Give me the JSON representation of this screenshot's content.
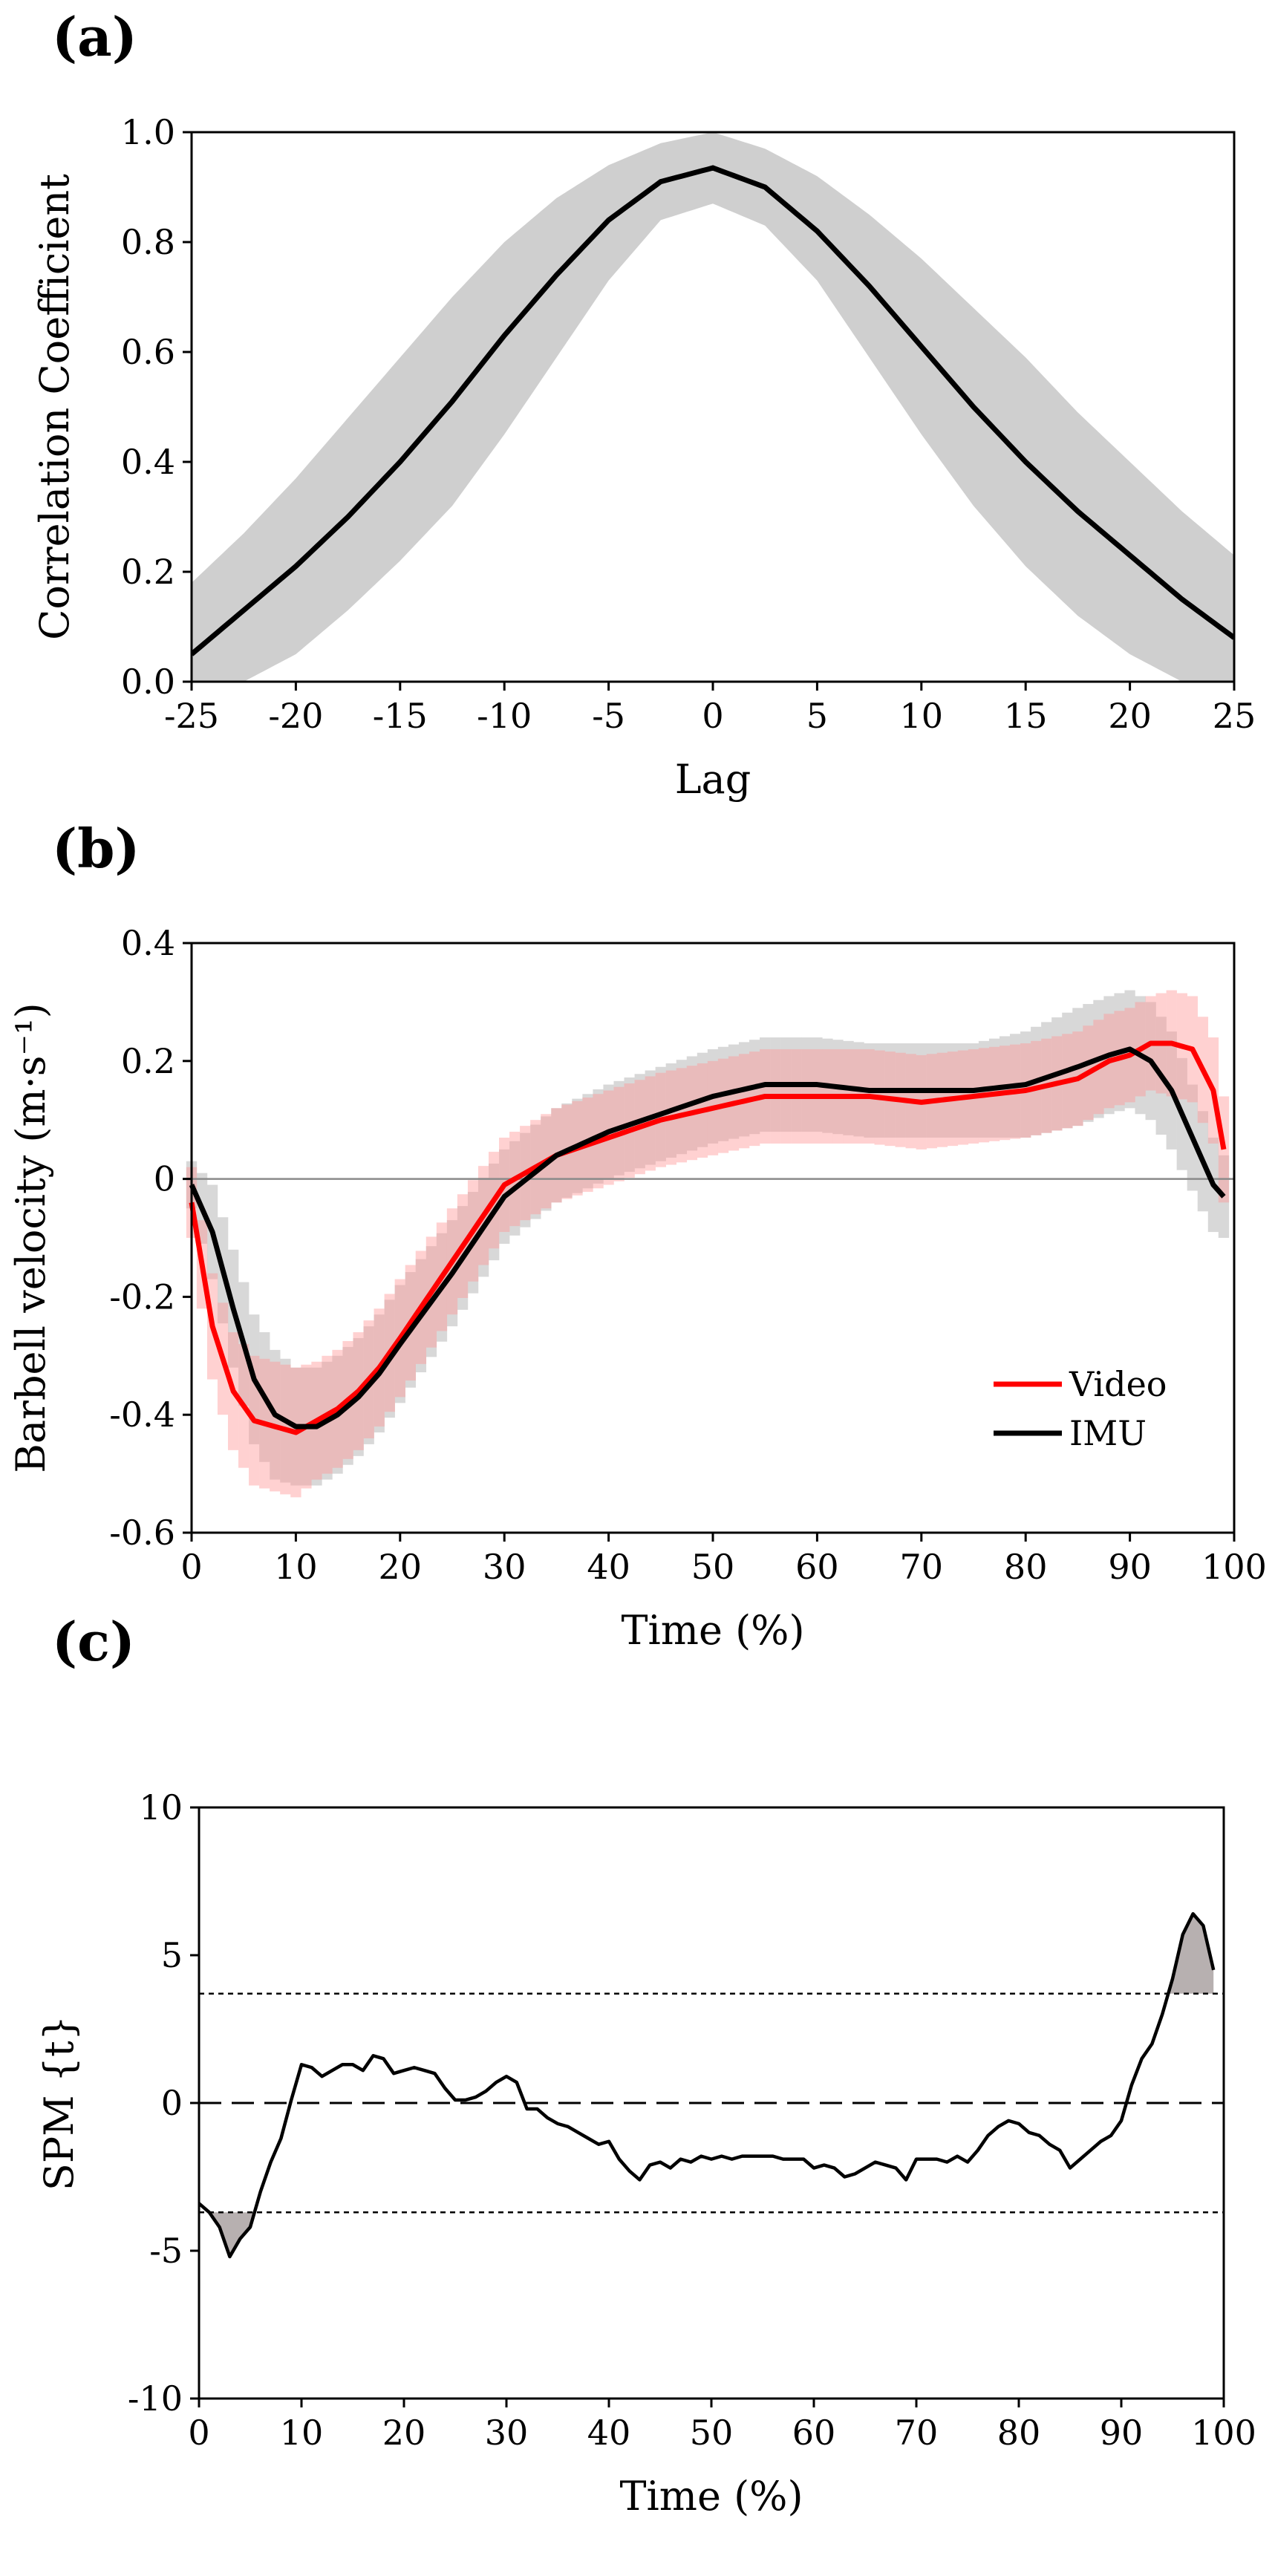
{
  "colors": {
    "band_gray": "#cfcfcf",
    "line_black": "#000000",
    "video_red": "#ff0000",
    "video_band": "#ff9a9a",
    "imu_band": "#a9a9a9",
    "zero_line": "#8a8a8a",
    "spm_fill": "#b7b0b0"
  },
  "chart_data": [
    {
      "id": "a",
      "type": "line",
      "panel_label": "(a)",
      "title": "",
      "xlabel": "Lag",
      "ylabel": "Correlation Coefficient",
      "xlim": [
        -25,
        25
      ],
      "ylim": [
        0,
        1
      ],
      "xticks": [
        -25,
        -20,
        -15,
        -10,
        -5,
        0,
        5,
        10,
        15,
        20,
        25
      ],
      "xtick_labels": [
        "-25",
        "-20",
        "-15",
        "-10",
        "-5",
        "0",
        "5",
        "10",
        "15",
        "20",
        "25"
      ],
      "yticks": [
        0,
        0.2,
        0.4,
        0.6,
        0.8,
        1.0
      ],
      "ytick_labels": [
        "0.0",
        "0.2",
        "0.4",
        "0.6",
        "0.8",
        "1.0"
      ],
      "x": [
        -25,
        -22.5,
        -20,
        -17.5,
        -15,
        -12.5,
        -10,
        -7.5,
        -5,
        -2.5,
        0,
        2.5,
        5,
        7.5,
        10,
        12.5,
        15,
        17.5,
        20,
        22.5,
        25
      ],
      "mean": [
        0.05,
        0.13,
        0.21,
        0.3,
        0.4,
        0.51,
        0.63,
        0.74,
        0.84,
        0.91,
        0.935,
        0.9,
        0.82,
        0.72,
        0.61,
        0.5,
        0.4,
        0.31,
        0.23,
        0.15,
        0.08
      ],
      "upper": [
        0.18,
        0.27,
        0.37,
        0.48,
        0.59,
        0.7,
        0.8,
        0.88,
        0.94,
        0.98,
        1.0,
        0.97,
        0.92,
        0.85,
        0.77,
        0.68,
        0.59,
        0.49,
        0.4,
        0.31,
        0.23
      ],
      "lower": [
        0.0,
        0.0,
        0.05,
        0.13,
        0.22,
        0.32,
        0.45,
        0.59,
        0.73,
        0.84,
        0.87,
        0.83,
        0.73,
        0.59,
        0.45,
        0.32,
        0.21,
        0.12,
        0.05,
        0.0,
        0.0
      ]
    },
    {
      "id": "b",
      "type": "line",
      "panel_label": "(b)",
      "title": "",
      "xlabel": "Time (%)",
      "ylabel": "Barbell velocity (m·s⁻¹)",
      "xlim": [
        0,
        100
      ],
      "ylim": [
        -0.6,
        0.4
      ],
      "xticks": [
        0,
        10,
        20,
        30,
        40,
        50,
        60,
        70,
        80,
        90,
        100
      ],
      "xtick_labels": [
        "0",
        "10",
        "20",
        "30",
        "40",
        "50",
        "60",
        "70",
        "80",
        "90",
        "100"
      ],
      "yticks": [
        -0.6,
        -0.4,
        -0.2,
        0,
        0.2,
        0.4
      ],
      "ytick_labels": [
        "-0.6",
        "-0.4",
        "-0.2",
        "0",
        "0.2",
        "0.4"
      ],
      "series": [
        {
          "name": "Video",
          "x": [
            0,
            2,
            4,
            6,
            8,
            10,
            12,
            14,
            16,
            18,
            20,
            25,
            30,
            35,
            40,
            45,
            50,
            55,
            60,
            65,
            70,
            75,
            80,
            85,
            88,
            90,
            92,
            94,
            96,
            98,
            99
          ],
          "values": [
            -0.04,
            -0.25,
            -0.36,
            -0.41,
            -0.42,
            -0.43,
            -0.41,
            -0.39,
            -0.36,
            -0.32,
            -0.27,
            -0.14,
            -0.01,
            0.04,
            0.07,
            0.1,
            0.12,
            0.14,
            0.14,
            0.14,
            0.13,
            0.14,
            0.15,
            0.17,
            0.2,
            0.21,
            0.23,
            0.23,
            0.22,
            0.15,
            0.05
          ],
          "sd": [
            0.06,
            0.09,
            0.1,
            0.11,
            0.11,
            0.11,
            0.1,
            0.1,
            0.1,
            0.1,
            0.1,
            0.09,
            0.08,
            0.08,
            0.08,
            0.08,
            0.08,
            0.08,
            0.08,
            0.08,
            0.08,
            0.08,
            0.08,
            0.08,
            0.08,
            0.08,
            0.08,
            0.09,
            0.09,
            0.09,
            0.09
          ]
        },
        {
          "name": "IMU",
          "x": [
            0,
            2,
            4,
            6,
            8,
            10,
            12,
            14,
            16,
            18,
            20,
            25,
            30,
            35,
            40,
            45,
            50,
            55,
            60,
            65,
            70,
            75,
            80,
            85,
            88,
            90,
            92,
            94,
            96,
            98,
            99
          ],
          "values": [
            -0.01,
            -0.09,
            -0.22,
            -0.34,
            -0.4,
            -0.42,
            -0.42,
            -0.4,
            -0.37,
            -0.33,
            -0.28,
            -0.16,
            -0.03,
            0.04,
            0.08,
            0.11,
            0.14,
            0.16,
            0.16,
            0.15,
            0.15,
            0.15,
            0.16,
            0.19,
            0.21,
            0.22,
            0.2,
            0.15,
            0.07,
            -0.01,
            -0.03
          ],
          "sd": [
            0.04,
            0.08,
            0.1,
            0.11,
            0.11,
            0.1,
            0.1,
            0.1,
            0.1,
            0.1,
            0.1,
            0.09,
            0.08,
            0.08,
            0.08,
            0.08,
            0.08,
            0.08,
            0.08,
            0.08,
            0.08,
            0.08,
            0.09,
            0.1,
            0.1,
            0.1,
            0.1,
            0.1,
            0.09,
            0.08,
            0.07
          ]
        }
      ],
      "legend": [
        "Video",
        "IMU"
      ],
      "legend_position": "bottom-right"
    },
    {
      "id": "c",
      "type": "line",
      "panel_label": "(c)",
      "title": "",
      "xlabel": "Time (%)",
      "ylabel": "SPM {t}",
      "xlim": [
        0,
        100
      ],
      "ylim": [
        -10,
        10
      ],
      "xticks": [
        0,
        10,
        20,
        30,
        40,
        50,
        60,
        70,
        80,
        90,
        100
      ],
      "xtick_labels": [
        "0",
        "10",
        "20",
        "30",
        "40",
        "50",
        "60",
        "70",
        "80",
        "90",
        "100"
      ],
      "yticks": [
        -10,
        -5,
        0,
        5,
        10
      ],
      "ytick_labels": [
        "-10",
        "-5",
        "0",
        "5",
        "10"
      ],
      "threshold": 3.7,
      "zero_line": 0,
      "x": [
        0,
        1,
        2,
        3,
        4,
        5,
        6,
        7,
        8,
        9,
        10,
        11,
        12,
        13,
        14,
        15,
        16,
        17,
        18,
        19,
        20,
        21,
        22,
        23,
        24,
        25,
        26,
        27,
        28,
        29,
        30,
        31,
        32,
        33,
        34,
        35,
        36,
        37,
        38,
        39,
        40,
        41,
        42,
        43,
        44,
        45,
        46,
        47,
        48,
        49,
        50,
        51,
        52,
        53,
        54,
        55,
        56,
        57,
        58,
        59,
        60,
        61,
        62,
        63,
        64,
        65,
        66,
        67,
        68,
        69,
        70,
        71,
        72,
        73,
        74,
        75,
        76,
        77,
        78,
        79,
        80,
        81,
        82,
        83,
        84,
        85,
        86,
        87,
        88,
        89,
        90,
        91,
        92,
        93,
        94,
        95,
        96,
        97,
        98,
        99
      ],
      "values": [
        -3.4,
        -3.7,
        -4.2,
        -5.2,
        -4.6,
        -4.2,
        -3.0,
        -2.0,
        -1.2,
        0.1,
        1.3,
        1.2,
        0.9,
        1.1,
        1.3,
        1.3,
        1.1,
        1.6,
        1.5,
        1.0,
        1.1,
        1.2,
        1.1,
        1.0,
        0.5,
        0.1,
        0.1,
        0.2,
        0.4,
        0.7,
        0.9,
        0.7,
        -0.2,
        -0.2,
        -0.5,
        -0.7,
        -0.8,
        -1.0,
        -1.2,
        -1.4,
        -1.3,
        -1.9,
        -2.3,
        -2.6,
        -2.1,
        -2.0,
        -2.2,
        -1.9,
        -2.0,
        -1.8,
        -1.9,
        -1.8,
        -1.9,
        -1.8,
        -1.8,
        -1.8,
        -1.8,
        -1.9,
        -1.9,
        -1.9,
        -2.2,
        -2.1,
        -2.2,
        -2.5,
        -2.4,
        -2.2,
        -2.0,
        -2.1,
        -2.2,
        -2.6,
        -1.9,
        -1.9,
        -1.9,
        -2.0,
        -1.8,
        -2.0,
        -1.6,
        -1.1,
        -0.8,
        -0.6,
        -0.7,
        -1.0,
        -1.1,
        -1.4,
        -1.6,
        -2.2,
        -1.9,
        -1.6,
        -1.3,
        -1.1,
        -0.6,
        0.6,
        1.5,
        2.0,
        3.0,
        4.2,
        5.7,
        6.4,
        6.0,
        4.5
      ]
    }
  ]
}
